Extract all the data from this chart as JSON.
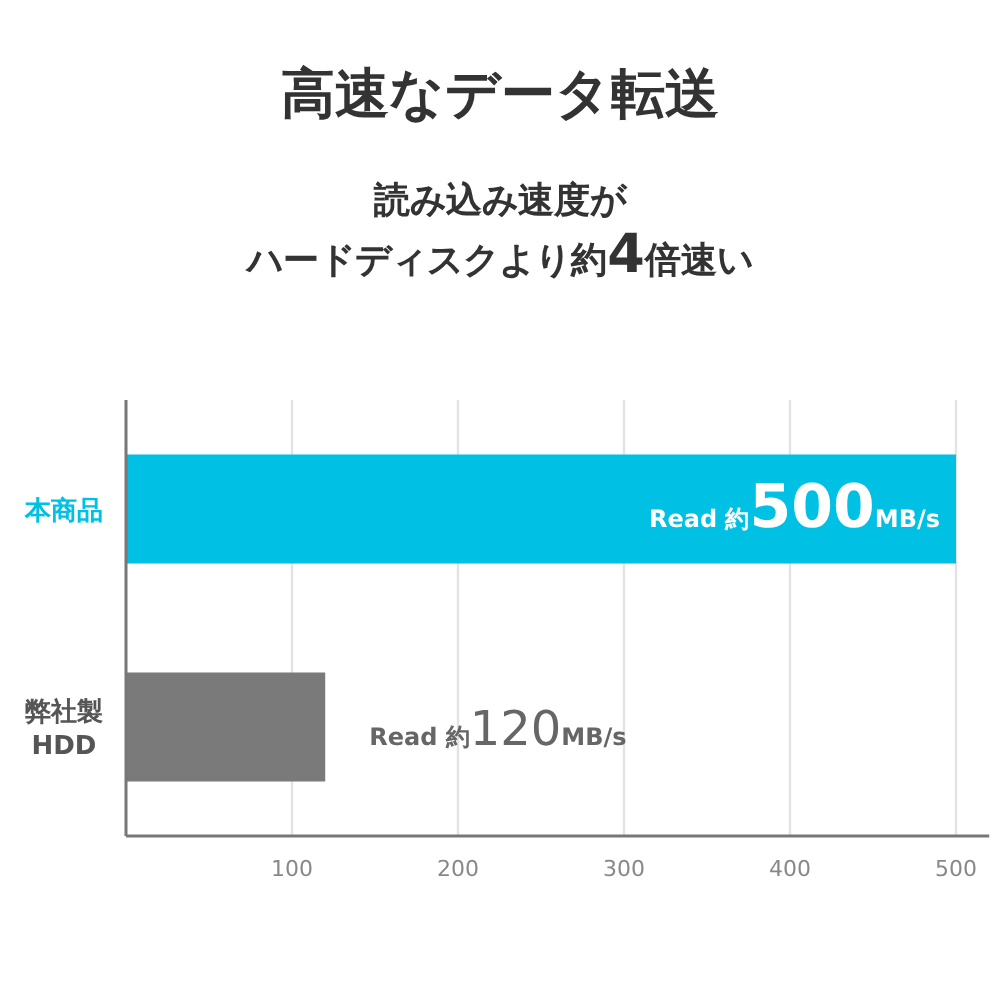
{
  "chart_data": {
    "type": "bar",
    "orientation": "horizontal",
    "title": "高速なデータ転送",
    "subtitle": "読み込み速度が",
    "annotations": [
      "ハードディスクより約4倍速い"
    ],
    "categories": [
      "本商品",
      "弊社製\nHDD"
    ],
    "values": [
      500,
      120
    ],
    "colors": [
      "#00c0e4",
      "#7a7a7a"
    ],
    "value_labels": [
      "Read 約500MB/s",
      "Read 約120MB/s"
    ],
    "xlim": [
      0,
      520
    ],
    "xticks": [
      100,
      200,
      300,
      400,
      500
    ],
    "grid": "x"
  }
}
